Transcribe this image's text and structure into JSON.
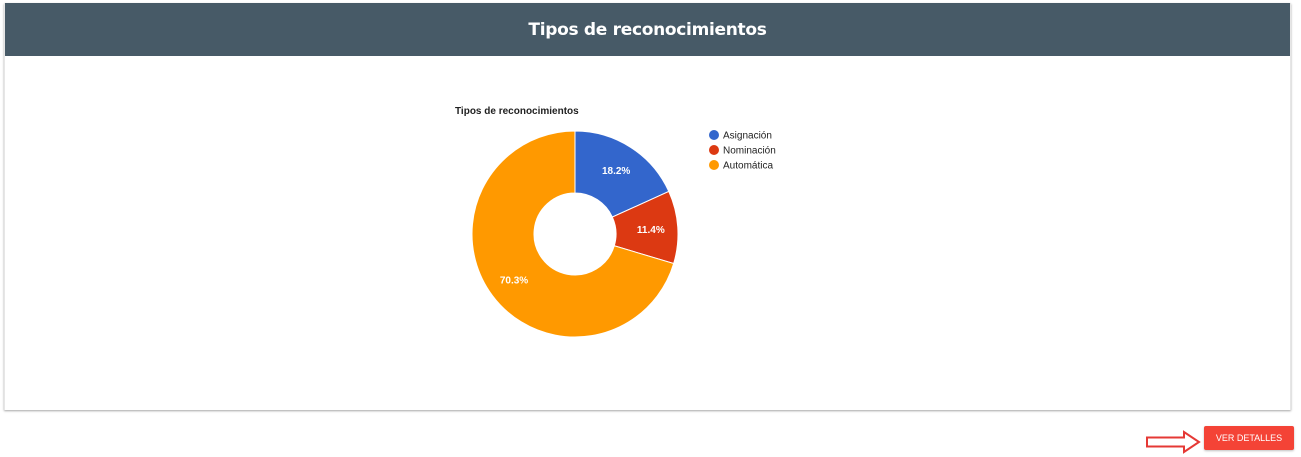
{
  "card": {
    "title": "Tipos de reconocimientos"
  },
  "chart_data": {
    "type": "pie",
    "donut": true,
    "title": "Tipos de reconocimientos",
    "legend_position": "right",
    "series": [
      {
        "name": "Asignación",
        "value": 18.2,
        "label": "18.2%",
        "color": "#3366cc"
      },
      {
        "name": "Nominación",
        "value": 11.4,
        "label": "11.4%",
        "color": "#dc3912"
      },
      {
        "name": "Automática",
        "value": 70.3,
        "label": "70.3%",
        "color": "#ff9900"
      }
    ]
  },
  "actions": {
    "details_label": "VER DETALLES"
  },
  "colors": {
    "header_bg": "#475a67",
    "button_bg": "#f44336",
    "arrow": "#e53935"
  }
}
